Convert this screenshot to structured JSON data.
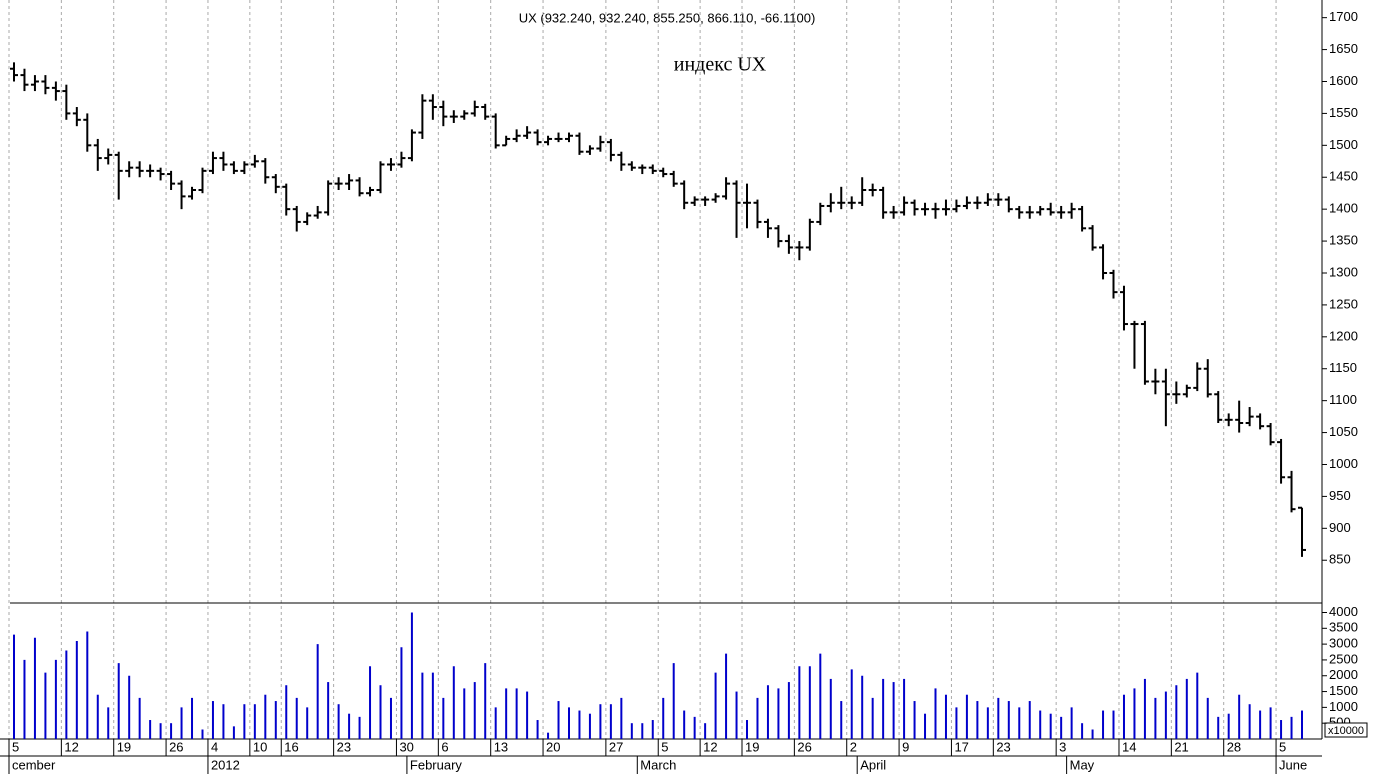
{
  "chart_data": {
    "type": "ohlc",
    "title": "UX (932.240, 932.240, 855.250, 866.110, -66.1100)",
    "annotation": "индекс UX",
    "color": "#000000",
    "categories": [
      "5",
      null,
      null,
      null,
      null,
      "12",
      null,
      null,
      null,
      null,
      "19",
      null,
      null,
      null,
      null,
      "26",
      null,
      null,
      null,
      "4",
      null,
      null,
      null,
      "10",
      null,
      null,
      "16",
      null,
      null,
      null,
      null,
      "23",
      null,
      null,
      null,
      null,
      null,
      "30",
      null,
      null,
      null,
      "6",
      null,
      null,
      null,
      null,
      "13",
      null,
      null,
      null,
      null,
      "20",
      null,
      null,
      null,
      null,
      null,
      "27",
      null,
      null,
      null,
      null,
      "5",
      null,
      null,
      null,
      "12",
      null,
      null,
      null,
      "19",
      null,
      null,
      null,
      null,
      "26",
      null,
      null,
      null,
      null,
      "2",
      null,
      null,
      null,
      null,
      "9",
      null,
      null,
      null,
      null,
      "17",
      null,
      null,
      null,
      "23",
      null,
      null,
      null,
      null,
      null,
      "3",
      null,
      null,
      null,
      null,
      null,
      "14",
      null,
      null,
      null,
      null,
      "21",
      null,
      null,
      null,
      null,
      "28",
      null,
      null,
      null,
      null,
      "5",
      null,
      null
    ],
    "months": [
      {
        "index": 0,
        "label": "cember"
      },
      {
        "index": 19,
        "label": "2012"
      },
      {
        "index": 38,
        "label": "February"
      },
      {
        "index": 60,
        "label": "March"
      },
      {
        "index": 81,
        "label": "April"
      },
      {
        "index": 101,
        "label": "May"
      },
      {
        "index": 121,
        "label": "June"
      }
    ],
    "open": [
      1620,
      1610,
      1595,
      1600,
      1590,
      1585,
      1550,
      1540,
      1500,
      1480,
      1485,
      1460,
      1465,
      1460,
      1460,
      1455,
      1440,
      1420,
      1430,
      1460,
      1480,
      1470,
      1460,
      1470,
      1475,
      1450,
      1435,
      1400,
      1380,
      1390,
      1395,
      1440,
      1440,
      1445,
      1425,
      1430,
      1470,
      1470,
      1480,
      1520,
      1570,
      1560,
      1545,
      1545,
      1550,
      1560,
      1545,
      1500,
      1510,
      1515,
      1520,
      1505,
      1510,
      1510,
      1515,
      1490,
      1495,
      1505,
      1485,
      1470,
      1465,
      1465,
      1460,
      1455,
      1440,
      1410,
      1415,
      1415,
      1420,
      1440,
      1410,
      1410,
      1380,
      1370,
      1350,
      1340,
      1340,
      1380,
      1405,
      1410,
      1410,
      1410,
      1430,
      1430,
      1395,
      1395,
      1410,
      1400,
      1400,
      1400,
      1400,
      1405,
      1410,
      1410,
      1415,
      1415,
      1400,
      1395,
      1395,
      1400,
      1395,
      1395,
      1400,
      1370,
      1340,
      1300,
      1270,
      1220,
      1220,
      1130,
      1130,
      1110,
      1110,
      1120,
      1150,
      1110,
      1070,
      1070,
      1065,
      1075,
      1060,
      1035,
      980,
      932.24
    ],
    "high": [
      1630,
      1620,
      1610,
      1610,
      1600,
      1595,
      1560,
      1550,
      1510,
      1495,
      1490,
      1475,
      1475,
      1470,
      1465,
      1460,
      1445,
      1435,
      1465,
      1490,
      1490,
      1475,
      1475,
      1485,
      1480,
      1455,
      1440,
      1405,
      1395,
      1405,
      1445,
      1450,
      1455,
      1450,
      1435,
      1475,
      1480,
      1490,
      1525,
      1580,
      1580,
      1570,
      1555,
      1555,
      1570,
      1565,
      1550,
      1515,
      1525,
      1530,
      1525,
      1515,
      1520,
      1520,
      1520,
      1500,
      1515,
      1510,
      1490,
      1475,
      1470,
      1470,
      1465,
      1460,
      1445,
      1420,
      1420,
      1425,
      1450,
      1445,
      1440,
      1415,
      1385,
      1375,
      1360,
      1350,
      1385,
      1410,
      1425,
      1435,
      1420,
      1450,
      1440,
      1435,
      1405,
      1420,
      1415,
      1410,
      1410,
      1415,
      1415,
      1420,
      1420,
      1425,
      1425,
      1420,
      1405,
      1405,
      1405,
      1410,
      1405,
      1410,
      1405,
      1375,
      1345,
      1305,
      1280,
      1225,
      1225,
      1150,
      1150,
      1130,
      1125,
      1160,
      1165,
      1115,
      1080,
      1100,
      1090,
      1080,
      1065,
      1040,
      990,
      932.24
    ],
    "low": [
      1600,
      1585,
      1585,
      1580,
      1570,
      1540,
      1530,
      1490,
      1460,
      1470,
      1415,
      1450,
      1450,
      1450,
      1445,
      1430,
      1400,
      1415,
      1425,
      1455,
      1460,
      1455,
      1455,
      1465,
      1440,
      1425,
      1390,
      1365,
      1375,
      1385,
      1390,
      1430,
      1430,
      1420,
      1420,
      1425,
      1460,
      1465,
      1475,
      1510,
      1540,
      1530,
      1535,
      1540,
      1545,
      1540,
      1495,
      1500,
      1505,
      1510,
      1500,
      1500,
      1505,
      1505,
      1485,
      1485,
      1490,
      1475,
      1460,
      1460,
      1455,
      1455,
      1450,
      1435,
      1400,
      1405,
      1405,
      1410,
      1415,
      1355,
      1370,
      1370,
      1355,
      1340,
      1330,
      1320,
      1335,
      1375,
      1395,
      1400,
      1400,
      1405,
      1420,
      1385,
      1385,
      1390,
      1390,
      1390,
      1385,
      1390,
      1395,
      1400,
      1400,
      1405,
      1405,
      1395,
      1385,
      1385,
      1390,
      1390,
      1385,
      1385,
      1365,
      1335,
      1290,
      1260,
      1210,
      1150,
      1125,
      1110,
      1060,
      1095,
      1105,
      1115,
      1105,
      1065,
      1060,
      1050,
      1060,
      1055,
      1030,
      970,
      925,
      855.25
    ],
    "close": [
      1610,
      1595,
      1600,
      1590,
      1585,
      1550,
      1540,
      1500,
      1480,
      1485,
      1460,
      1465,
      1460,
      1460,
      1455,
      1440,
      1420,
      1430,
      1460,
      1480,
      1470,
      1460,
      1470,
      1475,
      1450,
      1435,
      1400,
      1380,
      1390,
      1395,
      1440,
      1440,
      1445,
      1425,
      1430,
      1470,
      1470,
      1480,
      1520,
      1570,
      1560,
      1545,
      1545,
      1550,
      1560,
      1545,
      1500,
      1510,
      1515,
      1520,
      1505,
      1510,
      1510,
      1515,
      1490,
      1495,
      1505,
      1485,
      1470,
      1465,
      1465,
      1460,
      1455,
      1440,
      1410,
      1415,
      1415,
      1420,
      1440,
      1410,
      1410,
      1380,
      1370,
      1350,
      1340,
      1340,
      1380,
      1405,
      1410,
      1410,
      1410,
      1430,
      1430,
      1395,
      1395,
      1410,
      1400,
      1400,
      1400,
      1400,
      1405,
      1410,
      1410,
      1415,
      1415,
      1400,
      1395,
      1395,
      1400,
      1395,
      1395,
      1400,
      1370,
      1340,
      1300,
      1270,
      1220,
      1220,
      1130,
      1130,
      1110,
      1110,
      1120,
      1150,
      1110,
      1070,
      1070,
      1065,
      1075,
      1060,
      1035,
      980,
      930,
      866.11
    ],
    "ylim": [
      783,
      1712
    ],
    "yticks": [
      850,
      900,
      950,
      1000,
      1050,
      1100,
      1150,
      1200,
      1250,
      1300,
      1350,
      1400,
      1450,
      1500,
      1550,
      1600,
      1650,
      1700
    ],
    "volume": {
      "color": "#0000cc",
      "unit_label": "x10000",
      "values": [
        3300,
        2500,
        3200,
        2100,
        2500,
        2800,
        3100,
        3400,
        1400,
        1000,
        2400,
        2000,
        1300,
        600,
        500,
        500,
        1000,
        1300,
        300,
        1200,
        1100,
        400,
        1100,
        1100,
        1400,
        1200,
        1700,
        1300,
        1000,
        3000,
        1800,
        1100,
        800,
        700,
        2300,
        1700,
        1300,
        2900,
        4000,
        2100,
        2100,
        1300,
        2300,
        1600,
        1800,
        2400,
        1000,
        1600,
        1600,
        1500,
        600,
        200,
        1200,
        1000,
        900,
        800,
        1100,
        1100,
        1300,
        500,
        500,
        600,
        1300,
        2400,
        900,
        700,
        500,
        2100,
        2700,
        1500,
        600,
        1300,
        1700,
        1600,
        1800,
        2300,
        2300,
        2700,
        1900,
        1200,
        2200,
        2000,
        1300,
        1900,
        1800,
        1900,
        1200,
        800,
        1600,
        1400,
        1000,
        1400,
        1200,
        1000,
        1300,
        1200,
        1000,
        1200,
        900,
        800,
        700,
        1000,
        500,
        300,
        900,
        900,
        1400,
        1600,
        1900,
        1300,
        1500,
        1700,
        1900,
        2100,
        1300,
        700,
        800,
        1400,
        1100,
        900,
        1000,
        600,
        700,
        900
      ],
      "ylim": [
        0,
        4300
      ],
      "yticks": [
        500,
        1000,
        1500,
        2000,
        2500,
        3000,
        3500,
        4000
      ]
    }
  }
}
